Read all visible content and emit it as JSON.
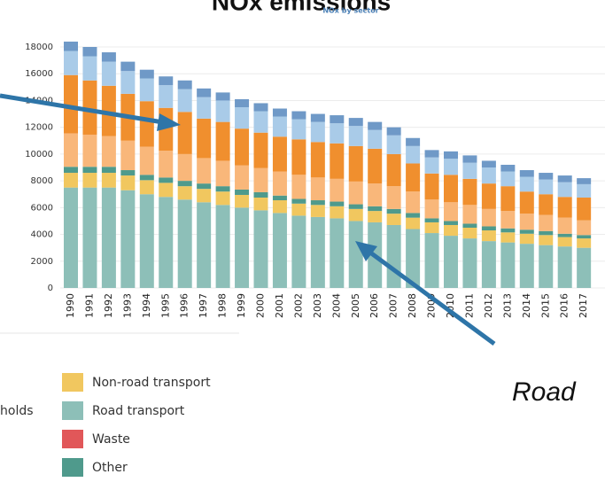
{
  "chart_data": {
    "type": "stacked-bar",
    "title": "NOx emissions",
    "subtitle": "NOx by sector",
    "annotation": "Road",
    "categories": [
      "1990",
      "1991",
      "1992",
      "1993",
      "1994",
      "1995",
      "1996",
      "1997",
      "1998",
      "1999",
      "2000",
      "2001",
      "2002",
      "2003",
      "2004",
      "2005",
      "2006",
      "2007",
      "2008",
      "2009",
      "2010",
      "2011",
      "2012",
      "2013",
      "2014",
      "2015",
      "2016",
      "2017"
    ],
    "series": [
      {
        "color": "#8dbfb8",
        "values": [
          7500,
          7500,
          7500,
          7300,
          7000,
          6800,
          6600,
          6400,
          6200,
          6000,
          5800,
          5600,
          5400,
          5300,
          5200,
          5000,
          4900,
          4700,
          4400,
          4100,
          3900,
          3700,
          3500,
          3400,
          3300,
          3200,
          3100,
          3000
        ]
      },
      {
        "color": "#f1c75f",
        "values": [
          1100,
          1100,
          1100,
          1100,
          1050,
          1050,
          1000,
          1000,
          1000,
          950,
          950,
          950,
          900,
          900,
          900,
          900,
          850,
          850,
          850,
          800,
          800,
          800,
          800,
          750,
          750,
          750,
          700,
          700
        ]
      },
      {
        "color": "#4f9a8c",
        "values": [
          450,
          450,
          450,
          400,
          400,
          400,
          400,
          400,
          400,
          400,
          400,
          350,
          350,
          350,
          350,
          350,
          350,
          350,
          350,
          300,
          300,
          300,
          300,
          300,
          300,
          300,
          250,
          250
        ]
      },
      {
        "color": "#f9b77a",
        "values": [
          2500,
          2400,
          2300,
          2200,
          2100,
          2000,
          2000,
          1900,
          1900,
          1800,
          1800,
          1800,
          1800,
          1700,
          1700,
          1700,
          1700,
          1700,
          1600,
          1400,
          1400,
          1400,
          1300,
          1300,
          1200,
          1200,
          1200,
          1100
        ]
      },
      {
        "color": "#f08f2e",
        "values": [
          4350,
          4050,
          3750,
          3500,
          3400,
          3200,
          3150,
          2950,
          2900,
          2750,
          2650,
          2600,
          2650,
          2650,
          2650,
          2650,
          2600,
          2400,
          2100,
          1950,
          2050,
          1950,
          1900,
          1850,
          1650,
          1550,
          1550,
          1700
        ]
      },
      {
        "color": "#a9cbe8",
        "values": [
          1800,
          1800,
          1800,
          1700,
          1700,
          1700,
          1700,
          1600,
          1600,
          1600,
          1600,
          1500,
          1500,
          1500,
          1500,
          1500,
          1400,
          1400,
          1300,
          1200,
          1200,
          1200,
          1200,
          1100,
          1100,
          1100,
          1100,
          1000
        ]
      },
      {
        "color": "#6f99c7",
        "values": [
          700,
          700,
          700,
          700,
          650,
          650,
          650,
          650,
          600,
          600,
          600,
          600,
          600,
          600,
          600,
          600,
          600,
          600,
          600,
          550,
          550,
          550,
          500,
          500,
          500,
          500,
          500,
          450
        ]
      }
    ],
    "ylim": [
      0,
      18000
    ],
    "yticks": [
      0,
      2000,
      4000,
      6000,
      8000,
      10000,
      12000,
      14000,
      16000,
      18000
    ],
    "grid": true,
    "legend": [
      {
        "label": "holds"
      },
      {
        "label": "Non-road transport",
        "color": "#f1c75f"
      },
      {
        "label": "Road transport",
        "color": "#8dbfb8"
      },
      {
        "label": "Waste",
        "color": "#e15759"
      },
      {
        "label": "Other",
        "color": "#4f9a8c"
      }
    ]
  }
}
